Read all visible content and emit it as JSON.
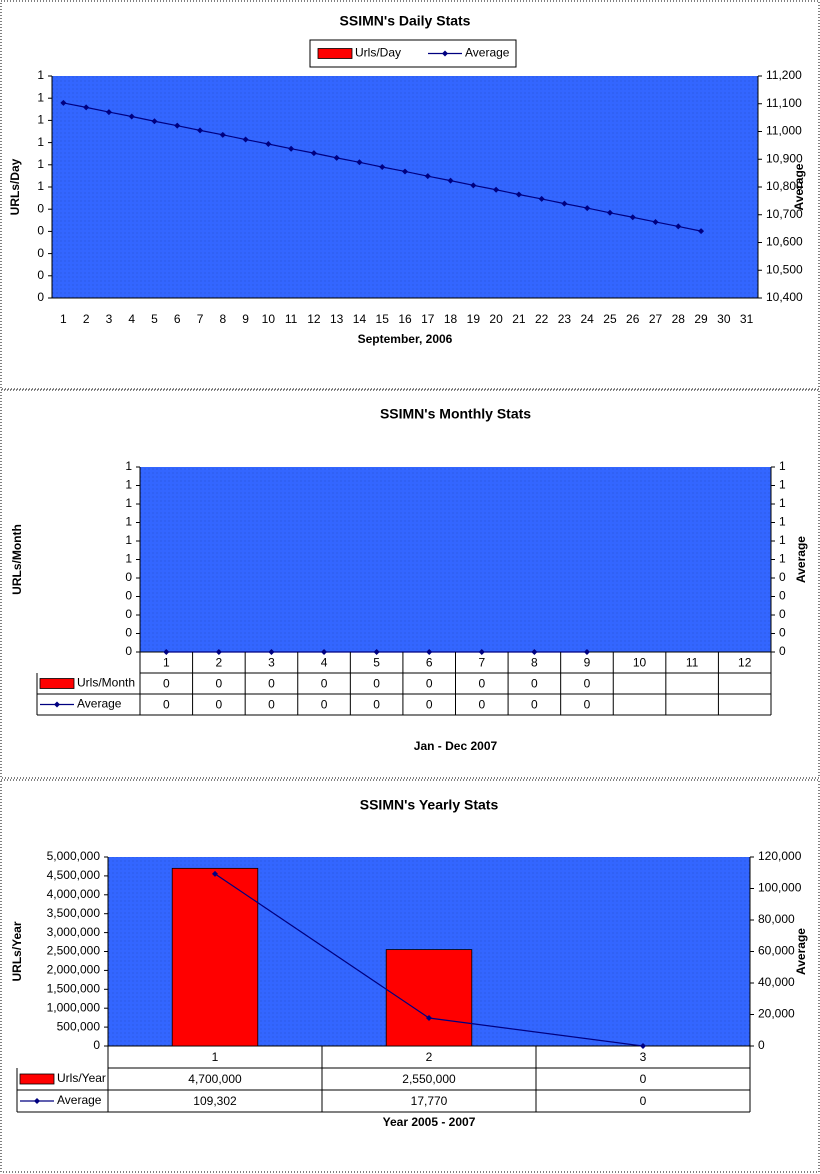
{
  "chart_data": [
    {
      "type": "combo",
      "title": "SSIMN's Daily Stats",
      "x_label": "September, 2006",
      "y_label": "URLs/Day",
      "y2_label": "Average",
      "legend": "top",
      "data_table": false,
      "grid": false,
      "plot_color": "#3366ff",
      "categories": [
        "1",
        "2",
        "3",
        "4",
        "5",
        "6",
        "7",
        "8",
        "9",
        "10",
        "11",
        "12",
        "13",
        "14",
        "15",
        "16",
        "17",
        "18",
        "19",
        "20",
        "21",
        "22",
        "23",
        "24",
        "25",
        "26",
        "27",
        "28",
        "29",
        "30",
        "31"
      ],
      "series": [
        {
          "name": "Urls/Day",
          "kind": "bar",
          "color": "#ff0000",
          "values": [
            0,
            0,
            0,
            0,
            0,
            0,
            0,
            0,
            0,
            0,
            0,
            0,
            0,
            0,
            0,
            0,
            0,
            0,
            0,
            0,
            0,
            0,
            0,
            0,
            0,
            0,
            0,
            0,
            0,
            null,
            null
          ]
        },
        {
          "name": "Average",
          "kind": "line",
          "color": "#000080",
          "axis": "y2",
          "values": [
            11103,
            11087,
            11070,
            11054,
            11037,
            11021,
            11004,
            10988,
            10971,
            10955,
            10938,
            10922,
            10905,
            10889,
            10872,
            10856,
            10839,
            10823,
            10806,
            10790,
            10773,
            10757,
            10740,
            10724,
            10707,
            10691,
            10674,
            10658,
            10641,
            null,
            null
          ]
        }
      ],
      "ylim": [
        0,
        1
      ],
      "yticks": [
        0,
        {
          "value": 0.1,
          "label": "0"
        },
        {
          "value": 0.2,
          "label": "0"
        },
        {
          "value": 0.3,
          "label": "0"
        },
        {
          "value": 0.4,
          "label": "0"
        },
        {
          "value": 0.5,
          "label": "1"
        },
        {
          "value": 0.6,
          "label": "1"
        },
        {
          "value": 0.7,
          "label": "1"
        },
        {
          "value": 0.8,
          "label": "1"
        },
        {
          "value": 0.9,
          "label": "1"
        },
        1
      ],
      "y2lim": [
        10400,
        11200
      ],
      "y2ticks": [
        {
          "value": 10400,
          "label": "10,400"
        },
        {
          "value": 10500,
          "label": "10,500"
        },
        {
          "value": 10600,
          "label": "10,600"
        },
        {
          "value": 10700,
          "label": "10,700"
        },
        {
          "value": 10800,
          "label": "10,800"
        },
        {
          "value": 10900,
          "label": "10,900"
        },
        {
          "value": 11000,
          "label": "11,000"
        },
        {
          "value": 11100,
          "label": "11,100"
        },
        {
          "value": 11200,
          "label": "11,200"
        }
      ]
    },
    {
      "type": "combo",
      "title": "SSIMN's Monthly Stats",
      "x_label": "Jan - Dec 2007",
      "y_label": "URLs/Month",
      "y2_label": "Average",
      "legend": "table",
      "data_table": true,
      "grid": false,
      "plot_color": "#3366ff",
      "categories": [
        "1",
        "2",
        "3",
        "4",
        "5",
        "6",
        "7",
        "8",
        "9",
        "10",
        "11",
        "12"
      ],
      "series": [
        {
          "name": "Urls/Month",
          "kind": "bar",
          "color": "#ff0000",
          "values": [
            0,
            0,
            0,
            0,
            0,
            0,
            0,
            0,
            0,
            null,
            null,
            null
          ]
        },
        {
          "name": "Average",
          "kind": "line",
          "color": "#000080",
          "axis": "y2",
          "values": [
            0,
            0,
            0,
            0,
            0,
            0,
            0,
            0,
            0,
            null,
            null,
            null
          ]
        }
      ],
      "ylim": [
        0,
        1
      ],
      "yticks": [
        0,
        {
          "value": 0.1,
          "label": "0"
        },
        {
          "value": 0.2,
          "label": "0"
        },
        {
          "value": 0.3,
          "label": "0"
        },
        {
          "value": 0.4,
          "label": "0"
        },
        {
          "value": 0.5,
          "label": "1"
        },
        {
          "value": 0.6,
          "label": "1"
        },
        {
          "value": 0.7,
          "label": "1"
        },
        {
          "value": 0.8,
          "label": "1"
        },
        {
          "value": 0.9,
          "label": "1"
        },
        1
      ],
      "y2lim": [
        0,
        1
      ],
      "y2ticks": [
        0,
        {
          "value": 0.1,
          "label": "0"
        },
        {
          "value": 0.2,
          "label": "0"
        },
        {
          "value": 0.3,
          "label": "0"
        },
        {
          "value": 0.4,
          "label": "0"
        },
        {
          "value": 0.5,
          "label": "1"
        },
        {
          "value": 0.6,
          "label": "1"
        },
        {
          "value": 0.7,
          "label": "1"
        },
        {
          "value": 0.8,
          "label": "1"
        },
        {
          "value": 0.9,
          "label": "1"
        },
        1
      ]
    },
    {
      "type": "combo",
      "title": "SSIMN's Yearly Stats",
      "x_label": "Year 2005 - 2007",
      "y_label": "URLs/Year",
      "y2_label": "Average",
      "legend": "table",
      "data_table": true,
      "grid": false,
      "plot_color": "#3366ff",
      "categories": [
        "1",
        "2",
        "3"
      ],
      "series": [
        {
          "name": "Urls/Year",
          "kind": "bar",
          "color": "#ff0000",
          "values": [
            4700000,
            2550000,
            0
          ],
          "value_labels": [
            "4,700,000",
            "2,550,000",
            "0"
          ]
        },
        {
          "name": "Average",
          "kind": "line",
          "color": "#000080",
          "axis": "y2",
          "values": [
            109302,
            17770,
            0
          ],
          "value_labels": [
            "109,302",
            "17,770",
            "0"
          ]
        }
      ],
      "ylim": [
        0,
        5000000
      ],
      "yticks": [
        0,
        {
          "value": 500000,
          "label": "500,000"
        },
        {
          "value": 1000000,
          "label": "1,000,000"
        },
        {
          "value": 1500000,
          "label": "1,500,000"
        },
        {
          "value": 2000000,
          "label": "2,000,000"
        },
        {
          "value": 2500000,
          "label": "2,500,000"
        },
        {
          "value": 3000000,
          "label": "3,000,000"
        },
        {
          "value": 3500000,
          "label": "3,500,000"
        },
        {
          "value": 4000000,
          "label": "4,000,000"
        },
        {
          "value": 4500000,
          "label": "4,500,000"
        },
        {
          "value": 5000000,
          "label": "5,000,000"
        }
      ],
      "y2lim": [
        0,
        120000
      ],
      "y2ticks": [
        0,
        {
          "value": 20000,
          "label": "20,000"
        },
        {
          "value": 40000,
          "label": "40,000"
        },
        {
          "value": 60000,
          "label": "60,000"
        },
        {
          "value": 80000,
          "label": "80,000"
        },
        {
          "value": 100000,
          "label": "100,000"
        },
        {
          "value": 120000,
          "label": "120,000"
        }
      ]
    }
  ]
}
